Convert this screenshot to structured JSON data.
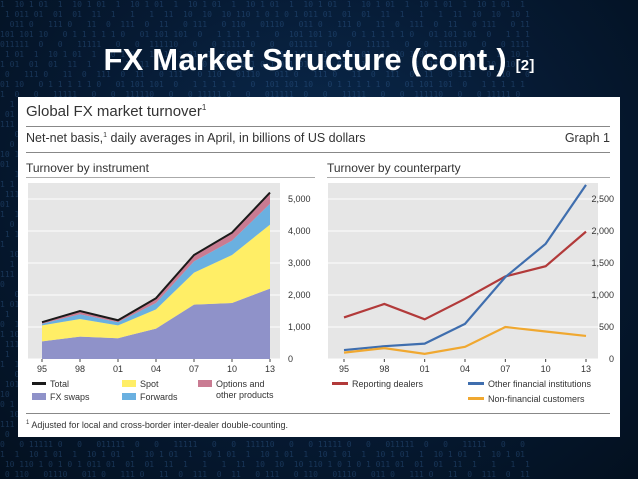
{
  "slide": {
    "title": "FX Market Structure (cont.)",
    "ref": "[2]"
  },
  "figure": {
    "title": "Global FX market turnover",
    "title_sup": "1",
    "subtitle_pre": "Net-net basis,",
    "subtitle_sup": "1",
    "subtitle_post": "daily averages in April, in billions of US dollars",
    "graph_label": "Graph 1",
    "footnote_sup": "1",
    "footnote": "Adjusted for local and cross-border inter-dealer double-counting."
  },
  "chart_data": [
    {
      "type": "area",
      "title": "Turnover by instrument",
      "x": [
        "95",
        "98",
        "01",
        "04",
        "07",
        "10",
        "13"
      ],
      "ylim": [
        0,
        5500
      ],
      "yticks": [
        "0",
        "1,000",
        "2,000",
        "3,000",
        "4,000",
        "5,000"
      ],
      "ytick_values": [
        0,
        1000,
        2000,
        3000,
        4000,
        5000
      ],
      "stacked": true,
      "series": [
        {
          "name": "FX swaps",
          "color": "#8f92c9",
          "values": [
            550,
            700,
            650,
            950,
            1700,
            1750,
            2200
          ]
        },
        {
          "name": "Spot",
          "color": "#ffee66",
          "values": [
            500,
            550,
            400,
            600,
            1000,
            1500,
            2000
          ]
        },
        {
          "name": "Forwards",
          "color": "#6ab0e0",
          "values": [
            50,
            150,
            100,
            200,
            350,
            450,
            650
          ]
        },
        {
          "name": "Options and other products",
          "color": "#c97b92",
          "values": [
            50,
            100,
            60,
            150,
            200,
            250,
            350
          ]
        }
      ],
      "total": {
        "name": "Total",
        "color": "#1a1a1a",
        "values": [
          1150,
          1500,
          1210,
          1900,
          3250,
          3950,
          5200
        ]
      },
      "legend": [
        "Total",
        "Spot",
        "Options and other products",
        "FX swaps",
        "Forwards"
      ],
      "legend_lines": {
        "options": [
          "Options and",
          "other products"
        ]
      }
    },
    {
      "type": "line",
      "title": "Turnover by counterparty",
      "x": [
        "95",
        "98",
        "01",
        "04",
        "07",
        "10",
        "13"
      ],
      "ylim": [
        0,
        2750
      ],
      "yticks": [
        "0",
        "500",
        "1,000",
        "1,500",
        "2,000",
        "2,500"
      ],
      "ytick_values": [
        0,
        500,
        1000,
        1500,
        2000,
        2500
      ],
      "series": [
        {
          "name": "Reporting dealers",
          "color": "#b23a3a",
          "values": [
            650,
            860,
            620,
            940,
            1290,
            1450,
            1990
          ]
        },
        {
          "name": "Other financial institutions",
          "color": "#3f6eae",
          "values": [
            140,
            200,
            240,
            550,
            1280,
            1800,
            2720
          ]
        },
        {
          "name": "Non-financial customers",
          "color": "#f0a830",
          "values": [
            100,
            170,
            80,
            190,
            500,
            430,
            360
          ]
        }
      ],
      "legend": [
        "Reporting dealers",
        "Other financial institutions",
        "Non-financial customers"
      ]
    }
  ]
}
